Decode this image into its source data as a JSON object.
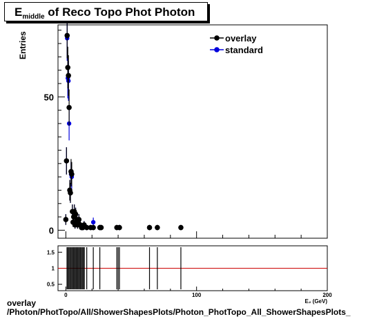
{
  "chart_data": {
    "type": "scatter",
    "title_main": "E",
    "title_sub": "middle",
    "title_rest": " of Reco Topo Phot Photon",
    "ylabel": "Entries",
    "xlabel": "E₂ (GeV)",
    "xlim": [
      -6,
      200
    ],
    "ylim": [
      -3,
      77
    ],
    "xticks": [
      {
        "v": 0,
        "label": "0"
      },
      {
        "v": 100,
        "label": "100"
      },
      {
        "v": 200,
        "label": "200"
      }
    ],
    "yticks": [
      {
        "v": 0,
        "label": "0"
      },
      {
        "v": 50,
        "label": "50"
      }
    ],
    "ratio_ylim": [
      0.3,
      1.7
    ],
    "ratio_yticks": [
      {
        "v": 0.5,
        "label": "0.5"
      },
      {
        "v": 1,
        "label": "1"
      },
      {
        "v": 1.5,
        "label": "1.5"
      }
    ],
    "legend": [
      {
        "name": "overlay",
        "color": "#000000"
      },
      {
        "name": "standard",
        "color": "#0000dd"
      }
    ],
    "series": [
      {
        "name": "overlay",
        "color": "#000000",
        "points": [
          [
            0,
            4
          ],
          [
            0.5,
            26
          ],
          [
            1,
            73
          ],
          [
            1.5,
            61
          ],
          [
            2,
            58
          ],
          [
            2.5,
            46
          ],
          [
            3,
            15
          ],
          [
            3.5,
            14
          ],
          [
            4,
            22
          ],
          [
            4.5,
            21
          ],
          [
            5,
            7
          ],
          [
            5.5,
            3
          ],
          [
            6,
            5
          ],
          [
            6.5,
            7
          ],
          [
            7,
            2
          ],
          [
            7.5,
            6
          ],
          [
            8,
            3
          ],
          [
            8.5,
            4
          ],
          [
            9,
            2
          ],
          [
            9.5,
            3
          ],
          [
            10,
            4
          ],
          [
            11,
            2
          ],
          [
            12,
            1
          ],
          [
            13,
            1
          ],
          [
            14,
            2
          ],
          [
            16,
            1
          ],
          [
            19,
            1
          ],
          [
            21,
            1
          ],
          [
            26,
            1
          ],
          [
            27,
            1
          ],
          [
            39,
            1
          ],
          [
            41,
            1
          ],
          [
            64,
            1
          ],
          [
            70,
            1
          ],
          [
            88,
            1
          ]
        ]
      },
      {
        "name": "standard",
        "color": "#0000dd",
        "points": [
          [
            0,
            4
          ],
          [
            0.5,
            26
          ],
          [
            1,
            72
          ],
          [
            1.5,
            57
          ],
          [
            2,
            56
          ],
          [
            2.5,
            40
          ],
          [
            3,
            15
          ],
          [
            3.5,
            14
          ],
          [
            4,
            21
          ],
          [
            4.5,
            20
          ],
          [
            5,
            7
          ],
          [
            5.5,
            3
          ],
          [
            6,
            5
          ],
          [
            6.5,
            7
          ],
          [
            7,
            2
          ],
          [
            7.5,
            6
          ],
          [
            8,
            3
          ],
          [
            8.5,
            4
          ],
          [
            9,
            2
          ],
          [
            9.5,
            3
          ],
          [
            10,
            4
          ],
          [
            11,
            2
          ],
          [
            12,
            1
          ],
          [
            13,
            1
          ],
          [
            14,
            2
          ],
          [
            16,
            1
          ],
          [
            21,
            3
          ],
          [
            26,
            1
          ],
          [
            41,
            1
          ]
        ]
      }
    ],
    "ratio_spikes": [
      1,
      2,
      3,
      4,
      5,
      6,
      7,
      8,
      9,
      10,
      11,
      12,
      13,
      14,
      16,
      21,
      26,
      39,
      40,
      41,
      64,
      70,
      88
    ]
  },
  "footer": {
    "line1": "overlay",
    "line2": "/Photon/PhotTopo/All/ShowerShapesPlots/Photon_PhotTopo_All_ShowerShapesPlots_"
  }
}
